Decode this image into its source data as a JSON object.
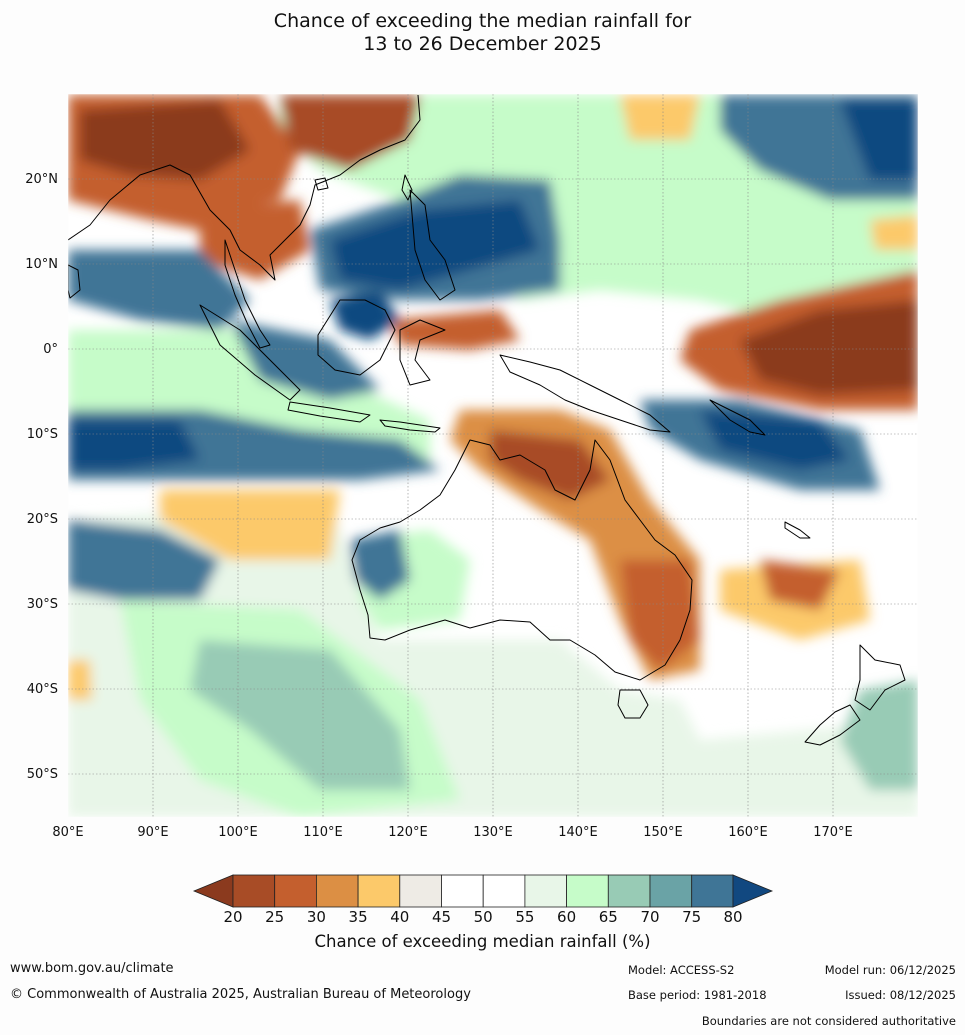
{
  "title": {
    "line1": "Chance of exceeding the median rainfall for",
    "line2": "13 to 26 December 2025"
  },
  "map": {
    "lon_range": [
      80,
      179
    ],
    "lat_range": [
      -55,
      30
    ],
    "lat_labels": [
      "20°N",
      "10°N",
      "0°",
      "10°S",
      "20°S",
      "30°S",
      "40°S",
      "50°S"
    ],
    "lon_labels": [
      "80°E",
      "90°E",
      "100°E",
      "110°E",
      "120°E",
      "130°E",
      "140°E",
      "150°E",
      "160°E",
      "170°E"
    ]
  },
  "legend": {
    "title": "Chance of exceeding median rainfall (%)",
    "ticks": [
      "20",
      "25",
      "30",
      "35",
      "40",
      "45",
      "50",
      "55",
      "60",
      "65",
      "70",
      "75",
      "80"
    ],
    "colors": {
      "below20": "#8b3a1e",
      "20-25": "#a84c26",
      "25-30": "#c45f2e",
      "30-35": "#dc8f44",
      "35-40": "#fcc96a",
      "40-45": "#eeebe5",
      "45-50": "#ffffff",
      "50-55": "#ffffff",
      "55-60": "#e8f6e8",
      "60-65": "#c6fcc9",
      "65-70": "#98cbb5",
      "70-75": "#6aa3a6",
      "75-80": "#3f7596",
      "above80": "#114880"
    }
  },
  "footer": {
    "website": "www.bom.gov.au/climate",
    "copyright": "© Commonwealth of Australia 2025, Australian Bureau of Meteorology",
    "model": "Model: ACCESS-S2",
    "base_period": "Base period: 1981-2018",
    "model_run": "Model run: 06/12/2025",
    "issued": "Issued: 08/12/2025",
    "disclaimer": "Boundaries are not considered authoritative"
  }
}
